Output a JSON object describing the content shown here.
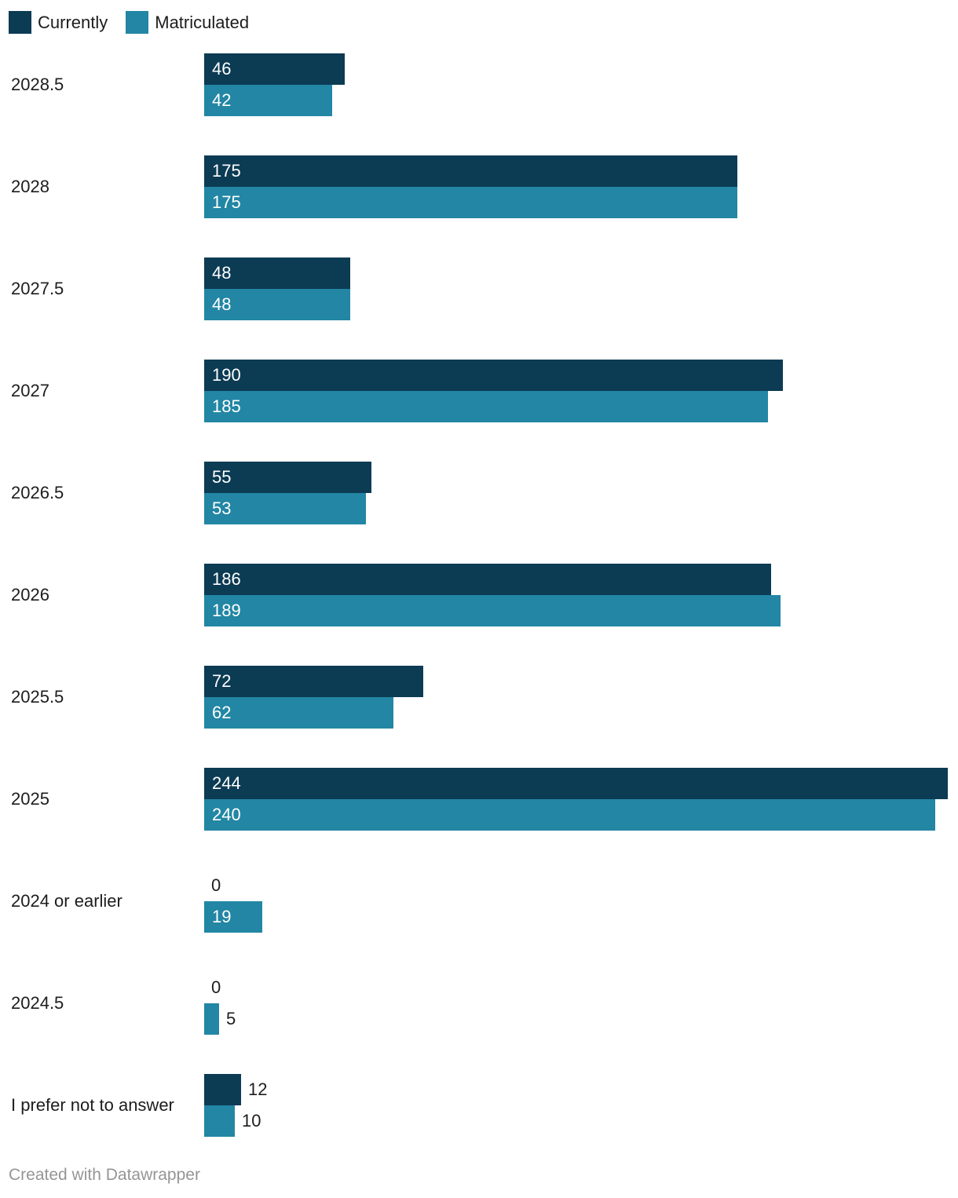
{
  "chart_data": {
    "type": "bar",
    "orientation": "horizontal",
    "title": "",
    "xlabel": "",
    "ylabel": "",
    "xlim": [
      0,
      244
    ],
    "grid": false,
    "legend_position": "top-left",
    "value_labels": true,
    "categories": [
      "2028.5",
      "2028",
      "2027.5",
      "2027",
      "2026.5",
      "2026",
      "2025.5",
      "2025",
      "2024 or earlier",
      "2024.5",
      "I prefer not to answer"
    ],
    "series": [
      {
        "name": "Currently",
        "color": "#0c3b54",
        "values": [
          46,
          175,
          48,
          190,
          55,
          186,
          72,
          244,
          0,
          0,
          12
        ]
      },
      {
        "name": "Matriculated",
        "color": "#2286a4",
        "values": [
          42,
          175,
          48,
          185,
          53,
          189,
          62,
          240,
          19,
          5,
          10
        ]
      }
    ]
  },
  "legend": {
    "items": [
      {
        "label": "Currently",
        "color": "#0c3b54"
      },
      {
        "label": "Matriculated",
        "color": "#2286a4"
      }
    ]
  },
  "colors": {
    "currently": "#0c3b54",
    "matriculated": "#2286a4",
    "label_dark": "#1d1d1d",
    "label_light": "#ffffff",
    "footer_gray": "#959595"
  },
  "footer": {
    "credit": "Created with Datawrapper"
  }
}
